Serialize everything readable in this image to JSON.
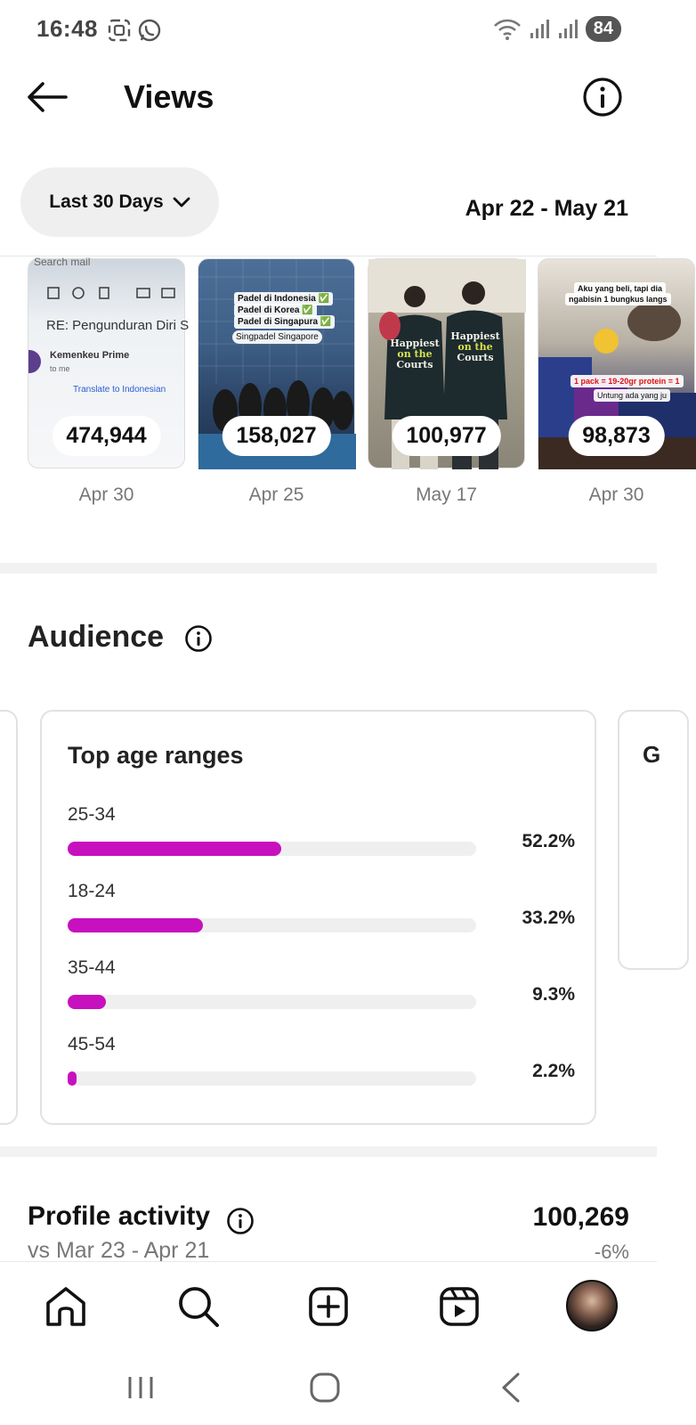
{
  "status_bar": {
    "time": "16:48",
    "battery": "84"
  },
  "header": {
    "title": "Views"
  },
  "filter": {
    "range_label": "Last 30 Days",
    "date_range": "Apr 22 - May 21"
  },
  "thumbnails": [
    {
      "count": "474,944",
      "date": "Apr 30",
      "overlay": [
        "Search mail",
        "RE: Pengunduran Diri S",
        "Kemenkeu Prime",
        "to me",
        "Translate to Indonesian"
      ]
    },
    {
      "count": "158,027",
      "date": "Apr 25",
      "overlay": [
        "Padel di Indonesia ✅",
        "Padel di Korea ✅",
        "Padel di Singapura ✅",
        "Singpadel Singapore"
      ]
    },
    {
      "count": "100,977",
      "date": "May 17",
      "overlay": [
        "Happiest on the Courts",
        "Happiest on the Courts"
      ]
    },
    {
      "count": "98,873",
      "date": "Apr 30",
      "overlay": [
        "Aku yang beli, tapi dia",
        "ngabisin 1 bungkus langs",
        "1 pack = 19-20gr protein = 1",
        "Untung ada yang ju"
      ]
    }
  ],
  "audience": {
    "title": "Audience",
    "peek_letter": "G",
    "age_card": {
      "title": "Top age ranges",
      "rows": [
        {
          "label": "25-34",
          "percent_text": "52.2%",
          "value": 52.2
        },
        {
          "label": "18-24",
          "percent_text": "33.2%",
          "value": 33.2
        },
        {
          "label": "35-44",
          "percent_text": "9.3%",
          "value": 9.3
        },
        {
          "label": "45-54",
          "percent_text": "2.2%",
          "value": 2.2
        }
      ],
      "bar_scale_max": 100,
      "bar_color": "#c710be"
    }
  },
  "profile_activity": {
    "title": "Profile activity",
    "compare_text": "vs Mar 23 - Apr 21",
    "value": "100,269",
    "change": "-6%"
  },
  "bottom_nav": {
    "items": [
      "home-icon",
      "search-icon",
      "create-icon",
      "reels-icon",
      "profile-avatar"
    ]
  },
  "system_nav": {
    "items": [
      "recent-apps-icon",
      "home-circle-icon",
      "back-chevron-icon"
    ]
  }
}
